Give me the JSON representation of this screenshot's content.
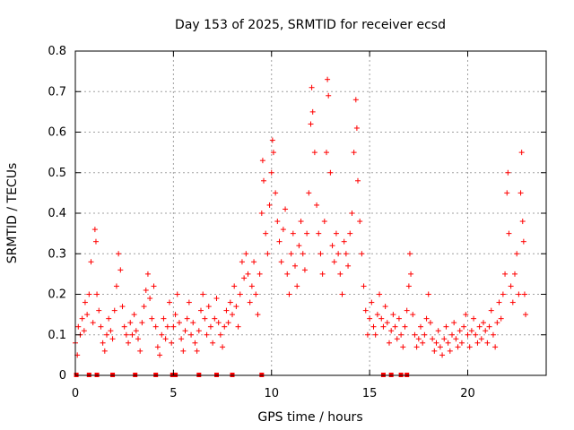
{
  "chart_data": {
    "type": "scatter",
    "title": "Day 153 of 2025, SRMTID for receiver ecsd",
    "xlabel": "GPS time / hours",
    "ylabel": "SRMTID / TECUs",
    "xlim": [
      0,
      24
    ],
    "ylim": [
      0,
      0.8
    ],
    "xticks": [
      "0",
      "5",
      "10",
      "15",
      "20"
    ],
    "yticks": [
      "0",
      "0.1",
      "0.2",
      "0.3",
      "0.4",
      "0.5",
      "0.6",
      "0.7",
      "0.8"
    ],
    "grid": true,
    "marker": "+",
    "color": "#ff0000",
    "series": [
      {
        "name": "SRMTID",
        "points": [
          [
            0.0,
            0.08
          ],
          [
            0.1,
            0.05
          ],
          [
            0.15,
            0.12
          ],
          [
            0.25,
            0.1
          ],
          [
            0.35,
            0.14
          ],
          [
            0.45,
            0.11
          ],
          [
            0.5,
            0.18
          ],
          [
            0.6,
            0.15
          ],
          [
            0.7,
            0.2
          ],
          [
            0.8,
            0.28
          ],
          [
            0.9,
            0.13
          ],
          [
            1.0,
            0.36
          ],
          [
            1.05,
            0.33
          ],
          [
            1.1,
            0.2
          ],
          [
            1.2,
            0.16
          ],
          [
            1.3,
            0.12
          ],
          [
            1.4,
            0.08
          ],
          [
            1.5,
            0.06
          ],
          [
            1.6,
            0.1
          ],
          [
            1.7,
            0.14
          ],
          [
            1.8,
            0.11
          ],
          [
            1.9,
            0.09
          ],
          [
            2.0,
            0.16
          ],
          [
            2.1,
            0.22
          ],
          [
            2.2,
            0.3
          ],
          [
            2.3,
            0.26
          ],
          [
            2.4,
            0.17
          ],
          [
            2.5,
            0.12
          ],
          [
            2.6,
            0.1
          ],
          [
            2.7,
            0.08
          ],
          [
            2.8,
            0.13
          ],
          [
            2.9,
            0.1
          ],
          [
            3.0,
            0.15
          ],
          [
            3.1,
            0.11
          ],
          [
            3.2,
            0.09
          ],
          [
            3.3,
            0.06
          ],
          [
            3.4,
            0.13
          ],
          [
            3.5,
            0.17
          ],
          [
            3.6,
            0.21
          ],
          [
            3.7,
            0.25
          ],
          [
            3.8,
            0.19
          ],
          [
            3.9,
            0.14
          ],
          [
            4.0,
            0.22
          ],
          [
            4.1,
            0.12
          ],
          [
            4.2,
            0.07
          ],
          [
            4.3,
            0.05
          ],
          [
            4.4,
            0.1
          ],
          [
            4.5,
            0.14
          ],
          [
            4.6,
            0.09
          ],
          [
            4.7,
            0.12
          ],
          [
            4.8,
            0.18
          ],
          [
            4.9,
            0.08
          ],
          [
            5.0,
            0.12
          ],
          [
            5.1,
            0.15
          ],
          [
            5.2,
            0.2
          ],
          [
            5.3,
            0.13
          ],
          [
            5.4,
            0.09
          ],
          [
            5.5,
            0.06
          ],
          [
            5.6,
            0.11
          ],
          [
            5.7,
            0.14
          ],
          [
            5.8,
            0.18
          ],
          [
            5.9,
            0.1
          ],
          [
            6.0,
            0.13
          ],
          [
            6.1,
            0.08
          ],
          [
            6.2,
            0.06
          ],
          [
            6.3,
            0.11
          ],
          [
            6.4,
            0.16
          ],
          [
            6.5,
            0.2
          ],
          [
            6.6,
            0.14
          ],
          [
            6.7,
            0.1
          ],
          [
            6.8,
            0.17
          ],
          [
            6.9,
            0.12
          ],
          [
            7.0,
            0.08
          ],
          [
            7.1,
            0.14
          ],
          [
            7.2,
            0.19
          ],
          [
            7.3,
            0.13
          ],
          [
            7.4,
            0.1
          ],
          [
            7.5,
            0.07
          ],
          [
            7.6,
            0.12
          ],
          [
            7.7,
            0.16
          ],
          [
            7.8,
            0.13
          ],
          [
            7.9,
            0.18
          ],
          [
            8.0,
            0.15
          ],
          [
            8.1,
            0.22
          ],
          [
            8.2,
            0.17
          ],
          [
            8.3,
            0.12
          ],
          [
            8.4,
            0.2
          ],
          [
            8.5,
            0.28
          ],
          [
            8.6,
            0.24
          ],
          [
            8.7,
            0.3
          ],
          [
            8.8,
            0.25
          ],
          [
            8.9,
            0.18
          ],
          [
            9.0,
            0.22
          ],
          [
            9.1,
            0.28
          ],
          [
            9.2,
            0.2
          ],
          [
            9.3,
            0.15
          ],
          [
            9.4,
            0.25
          ],
          [
            9.5,
            0.4
          ],
          [
            9.55,
            0.53
          ],
          [
            9.6,
            0.48
          ],
          [
            9.7,
            0.35
          ],
          [
            9.8,
            0.3
          ],
          [
            9.9,
            0.42
          ],
          [
            10.0,
            0.5
          ],
          [
            10.05,
            0.58
          ],
          [
            10.1,
            0.55
          ],
          [
            10.2,
            0.45
          ],
          [
            10.3,
            0.38
          ],
          [
            10.4,
            0.33
          ],
          [
            10.5,
            0.28
          ],
          [
            10.6,
            0.36
          ],
          [
            10.7,
            0.41
          ],
          [
            10.8,
            0.25
          ],
          [
            10.9,
            0.2
          ],
          [
            11.0,
            0.3
          ],
          [
            11.1,
            0.35
          ],
          [
            11.2,
            0.27
          ],
          [
            11.3,
            0.22
          ],
          [
            11.4,
            0.32
          ],
          [
            11.5,
            0.38
          ],
          [
            11.6,
            0.3
          ],
          [
            11.7,
            0.26
          ],
          [
            11.8,
            0.35
          ],
          [
            11.9,
            0.45
          ],
          [
            12.0,
            0.62
          ],
          [
            12.05,
            0.71
          ],
          [
            12.1,
            0.65
          ],
          [
            12.2,
            0.55
          ],
          [
            12.3,
            0.42
          ],
          [
            12.4,
            0.35
          ],
          [
            12.5,
            0.3
          ],
          [
            12.6,
            0.25
          ],
          [
            12.7,
            0.38
          ],
          [
            12.8,
            0.55
          ],
          [
            12.85,
            0.73
          ],
          [
            12.9,
            0.69
          ],
          [
            13.0,
            0.5
          ],
          [
            13.1,
            0.32
          ],
          [
            13.2,
            0.28
          ],
          [
            13.3,
            0.35
          ],
          [
            13.4,
            0.3
          ],
          [
            13.5,
            0.25
          ],
          [
            13.6,
            0.2
          ],
          [
            13.7,
            0.33
          ],
          [
            13.8,
            0.3
          ],
          [
            13.9,
            0.27
          ],
          [
            14.0,
            0.35
          ],
          [
            14.1,
            0.4
          ],
          [
            14.2,
            0.55
          ],
          [
            14.3,
            0.68
          ],
          [
            14.35,
            0.61
          ],
          [
            14.4,
            0.48
          ],
          [
            14.5,
            0.38
          ],
          [
            14.6,
            0.3
          ],
          [
            14.7,
            0.22
          ],
          [
            14.8,
            0.16
          ],
          [
            14.9,
            0.1
          ],
          [
            15.0,
            0.14
          ],
          [
            15.1,
            0.18
          ],
          [
            15.2,
            0.12
          ],
          [
            15.3,
            0.1
          ],
          [
            15.4,
            0.15
          ],
          [
            15.5,
            0.2
          ],
          [
            15.6,
            0.14
          ],
          [
            15.7,
            0.12
          ],
          [
            15.8,
            0.17
          ],
          [
            15.9,
            0.13
          ],
          [
            16.0,
            0.08
          ],
          [
            16.1,
            0.11
          ],
          [
            16.2,
            0.15
          ],
          [
            16.3,
            0.12
          ],
          [
            16.4,
            0.09
          ],
          [
            16.5,
            0.14
          ],
          [
            16.6,
            0.1
          ],
          [
            16.7,
            0.07
          ],
          [
            16.8,
            0.12
          ],
          [
            16.9,
            0.16
          ],
          [
            17.0,
            0.22
          ],
          [
            17.05,
            0.3
          ],
          [
            17.1,
            0.25
          ],
          [
            17.2,
            0.15
          ],
          [
            17.3,
            0.1
          ],
          [
            17.4,
            0.07
          ],
          [
            17.5,
            0.09
          ],
          [
            17.6,
            0.12
          ],
          [
            17.7,
            0.08
          ],
          [
            17.8,
            0.1
          ],
          [
            17.9,
            0.14
          ],
          [
            18.0,
            0.2
          ],
          [
            18.1,
            0.13
          ],
          [
            18.2,
            0.09
          ],
          [
            18.3,
            0.06
          ],
          [
            18.4,
            0.08
          ],
          [
            18.5,
            0.11
          ],
          [
            18.6,
            0.07
          ],
          [
            18.7,
            0.05
          ],
          [
            18.8,
            0.09
          ],
          [
            18.9,
            0.12
          ],
          [
            19.0,
            0.08
          ],
          [
            19.1,
            0.06
          ],
          [
            19.2,
            0.1
          ],
          [
            19.3,
            0.13
          ],
          [
            19.4,
            0.09
          ],
          [
            19.5,
            0.07
          ],
          [
            19.6,
            0.11
          ],
          [
            19.7,
            0.08
          ],
          [
            19.8,
            0.12
          ],
          [
            19.9,
            0.15
          ],
          [
            20.0,
            0.1
          ],
          [
            20.1,
            0.07
          ],
          [
            20.2,
            0.11
          ],
          [
            20.3,
            0.14
          ],
          [
            20.4,
            0.1
          ],
          [
            20.5,
            0.08
          ],
          [
            20.6,
            0.12
          ],
          [
            20.7,
            0.09
          ],
          [
            20.8,
            0.13
          ],
          [
            20.9,
            0.11
          ],
          [
            21.0,
            0.08
          ],
          [
            21.1,
            0.12
          ],
          [
            21.2,
            0.16
          ],
          [
            21.3,
            0.1
          ],
          [
            21.4,
            0.07
          ],
          [
            21.5,
            0.13
          ],
          [
            21.6,
            0.18
          ],
          [
            21.7,
            0.14
          ],
          [
            21.8,
            0.2
          ],
          [
            21.9,
            0.25
          ],
          [
            22.0,
            0.45
          ],
          [
            22.05,
            0.5
          ],
          [
            22.1,
            0.35
          ],
          [
            22.2,
            0.22
          ],
          [
            22.3,
            0.18
          ],
          [
            22.4,
            0.25
          ],
          [
            22.5,
            0.3
          ],
          [
            22.6,
            0.2
          ],
          [
            22.7,
            0.45
          ],
          [
            22.75,
            0.55
          ],
          [
            22.8,
            0.38
          ],
          [
            22.85,
            0.33
          ],
          [
            22.9,
            0.2
          ],
          [
            22.95,
            0.15
          ]
        ]
      }
    ],
    "gap_markers_x": [
      0.05,
      0.7,
      1.1,
      1.9,
      3.05,
      4.1,
      4.95,
      5.1,
      6.3,
      7.2,
      8.0,
      9.5,
      15.7,
      16.1,
      16.6,
      16.9
    ]
  }
}
